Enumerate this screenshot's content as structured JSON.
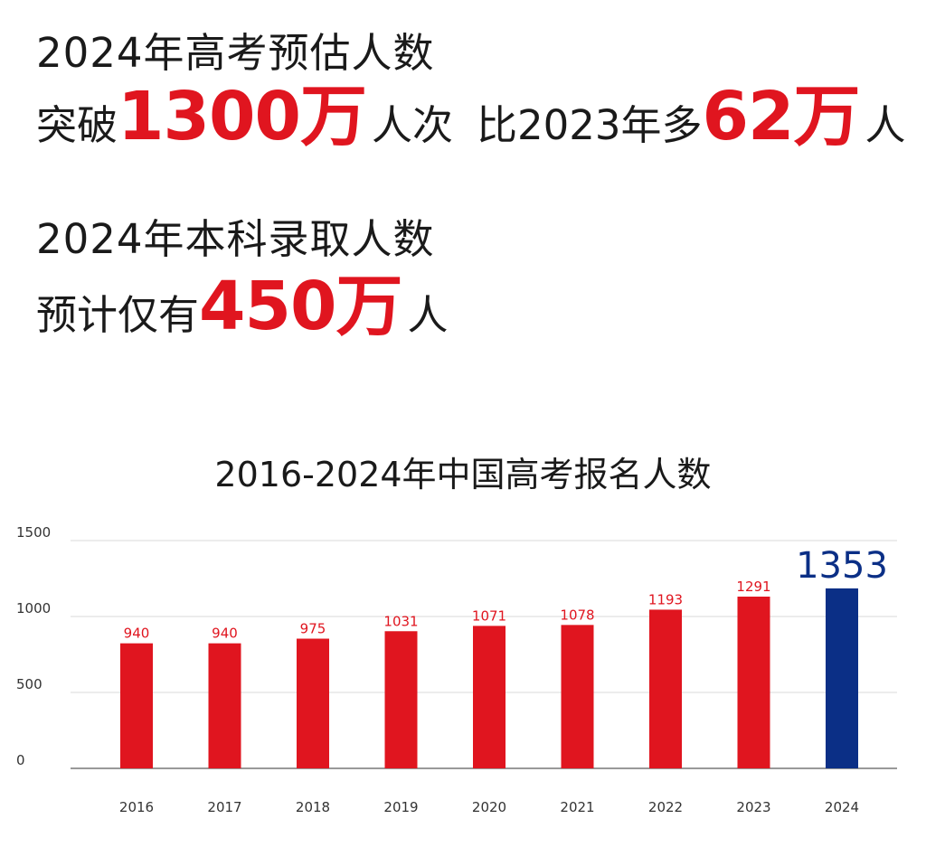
{
  "headline": {
    "line1": "2024年高考预估人数",
    "line2_prefix": "突破",
    "line2_big": "1300万",
    "line2_mid": "人次",
    "line2_compare": "比2023年多",
    "line2_big2": "62万",
    "line2_suffix": "人",
    "line3": "2024年本科录取人数",
    "line4_prefix": "预计仅有",
    "line4_big": "450万",
    "line4_suffix": "人"
  },
  "colors": {
    "accent_red": "#e0151f",
    "highlight_blue": "#0b2f86",
    "text": "#1a1a1a",
    "grid": "#e6e6e6",
    "axis": "#999999"
  },
  "chart_data": {
    "type": "bar",
    "title": "2016-2024年中国高考报名人数",
    "categories": [
      "2016",
      "2017",
      "2018",
      "2019",
      "2020",
      "2021",
      "2022",
      "2023",
      "2024"
    ],
    "values": [
      940,
      940,
      975,
      1031,
      1071,
      1078,
      1193,
      1291,
      1353
    ],
    "ylim": [
      0,
      1500
    ],
    "yticks": [
      0,
      500,
      1000,
      1500
    ],
    "grid": true,
    "highlight_index": 8,
    "xlabel": "",
    "ylabel": ""
  }
}
